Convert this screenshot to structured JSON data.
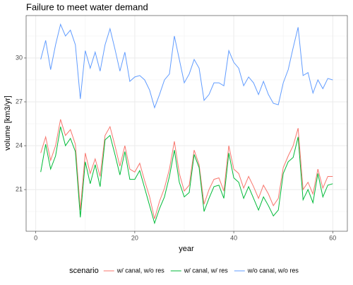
{
  "chart_data": {
    "type": "line",
    "title": "Failure to meet water demand",
    "x_label": "year",
    "y_label": "volume [km3/yr]",
    "legend_title": "scenario",
    "legend": "bottom",
    "grid": true,
    "xlim": [
      -1.95,
      62.95
    ],
    "ylim": [
      18.15,
      32.9
    ],
    "xticks": [
      0,
      20,
      40,
      60
    ],
    "yticks": [
      21,
      24,
      27,
      30
    ],
    "minor_xticks": [
      10,
      30,
      50
    ],
    "minor_yticks": [
      19.5,
      22.5,
      25.5,
      28.5,
      31.5
    ],
    "x": [
      1,
      2,
      3,
      4,
      5,
      6,
      7,
      8,
      9,
      10,
      11,
      12,
      13,
      14,
      15,
      16,
      17,
      18,
      19,
      20,
      21,
      22,
      23,
      24,
      25,
      26,
      27,
      28,
      29,
      30,
      31,
      32,
      33,
      34,
      35,
      36,
      37,
      38,
      39,
      40,
      41,
      42,
      43,
      44,
      45,
      46,
      47,
      48,
      49,
      50,
      51,
      52,
      53,
      54,
      55,
      56,
      57,
      58,
      59,
      60
    ],
    "series": [
      {
        "name": "w/ canal, w/o res",
        "color": "#F8766D",
        "values": [
          23.5,
          24.6,
          23.0,
          24.0,
          25.8,
          24.7,
          25.1,
          24.1,
          19.6,
          23.5,
          22.1,
          23.1,
          21.9,
          24.7,
          25.3,
          24.0,
          22.6,
          24.0,
          22.4,
          22.2,
          22.8,
          21.6,
          20.5,
          19.0,
          20.2,
          21.1,
          22.4,
          24.3,
          22.1,
          20.9,
          21.3,
          23.7,
          22.7,
          20.0,
          21.0,
          21.7,
          21.8,
          20.9,
          24.0,
          22.4,
          22.1,
          21.1,
          21.9,
          21.2,
          20.4,
          21.3,
          20.7,
          19.9,
          20.4,
          22.5,
          23.3,
          24.0,
          25.2,
          21.0,
          21.5,
          20.7,
          22.4,
          21.1,
          21.9,
          21.9
        ]
      },
      {
        "name": "w/ canal, w/ res",
        "color": "#00BA38",
        "values": [
          22.2,
          24.1,
          22.4,
          23.3,
          25.3,
          24.0,
          24.5,
          23.6,
          19.1,
          22.9,
          21.4,
          22.7,
          21.2,
          24.4,
          24.7,
          23.4,
          22.0,
          23.6,
          21.7,
          21.7,
          22.3,
          21.1,
          19.9,
          18.7,
          19.7,
          20.5,
          21.9,
          23.7,
          21.5,
          20.5,
          20.8,
          23.4,
          22.5,
          19.5,
          20.4,
          21.2,
          21.3,
          20.4,
          23.5,
          21.8,
          21.5,
          20.4,
          21.2,
          20.4,
          19.6,
          20.5,
          19.9,
          19.2,
          19.6,
          22.1,
          22.9,
          23.2,
          24.6,
          20.3,
          21.0,
          20.1,
          22.1,
          20.5,
          21.3,
          21.4
        ]
      },
      {
        "name": "w/o canal, w/o res",
        "color": "#619CFF",
        "values": [
          29.9,
          31.2,
          29.2,
          30.9,
          32.3,
          31.5,
          31.9,
          30.9,
          27.2,
          30.5,
          29.3,
          30.4,
          29.1,
          30.9,
          32.0,
          30.6,
          29.1,
          30.4,
          28.4,
          28.7,
          28.8,
          28.5,
          27.8,
          26.6,
          27.5,
          28.5,
          28.9,
          31.5,
          29.9,
          28.3,
          28.9,
          29.9,
          29.3,
          27.1,
          27.5,
          28.3,
          28.3,
          28.1,
          30.5,
          29.7,
          29.3,
          28.1,
          28.7,
          28.3,
          27.5,
          28.4,
          27.5,
          26.9,
          26.8,
          28.3,
          29.2,
          30.7,
          32.1,
          28.8,
          29.0,
          27.6,
          28.5,
          27.9,
          28.6,
          28.5
        ]
      }
    ]
  }
}
